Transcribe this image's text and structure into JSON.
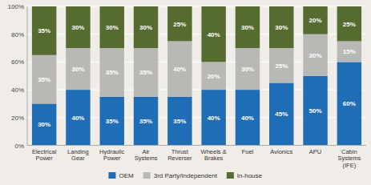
{
  "chart_data": {
    "type": "bar",
    "stacked": true,
    "categories": [
      "Electrical\nPower",
      "Landing\nGear",
      "Hydraulic\nPower",
      "Air\nSystems",
      "Thrust\nReverser",
      "Wheels &\nBrakes",
      "Fuel",
      "Avionics",
      "APU",
      "Cabin\nSystems\n(IFE)"
    ],
    "series": [
      {
        "name": "OEM",
        "color": "#1f6eb5",
        "values": [
          30,
          40,
          35,
          35,
          35,
          40,
          40,
          45,
          50,
          60
        ],
        "value_labels": [
          "30%",
          "40%",
          "35%",
          "35%",
          "35%",
          "40%",
          "40%",
          "45%",
          "50%",
          "60%"
        ]
      },
      {
        "name": "3rd Party/Independent",
        "color": "#b8b8b4",
        "values": [
          35,
          30,
          35,
          35,
          40,
          20,
          30,
          25,
          30,
          15
        ],
        "value_labels": [
          "35%",
          "30%",
          "35%",
          "35%",
          "40%",
          "20%",
          "30%",
          "25%",
          "30%",
          "15%"
        ]
      },
      {
        "name": "In-house",
        "color": "#556b2f",
        "values": [
          35,
          30,
          30,
          30,
          25,
          40,
          30,
          30,
          20,
          25
        ],
        "value_labels": [
          "35%",
          "30%",
          "30%",
          "30%",
          "25%",
          "40%",
          "30%",
          "30%",
          "20%",
          "25%"
        ]
      }
    ],
    "ylim": [
      0,
      100
    ],
    "yticks": [
      {
        "value": 0,
        "label": "0%"
      },
      {
        "value": 20,
        "label": "20%"
      },
      {
        "value": 40,
        "label": "40%"
      },
      {
        "value": 60,
        "label": "60%"
      },
      {
        "value": 80,
        "label": "80%"
      },
      {
        "value": 100,
        "label": "100%"
      }
    ],
    "grid": true,
    "data_labels": true,
    "legend": "bottom"
  }
}
